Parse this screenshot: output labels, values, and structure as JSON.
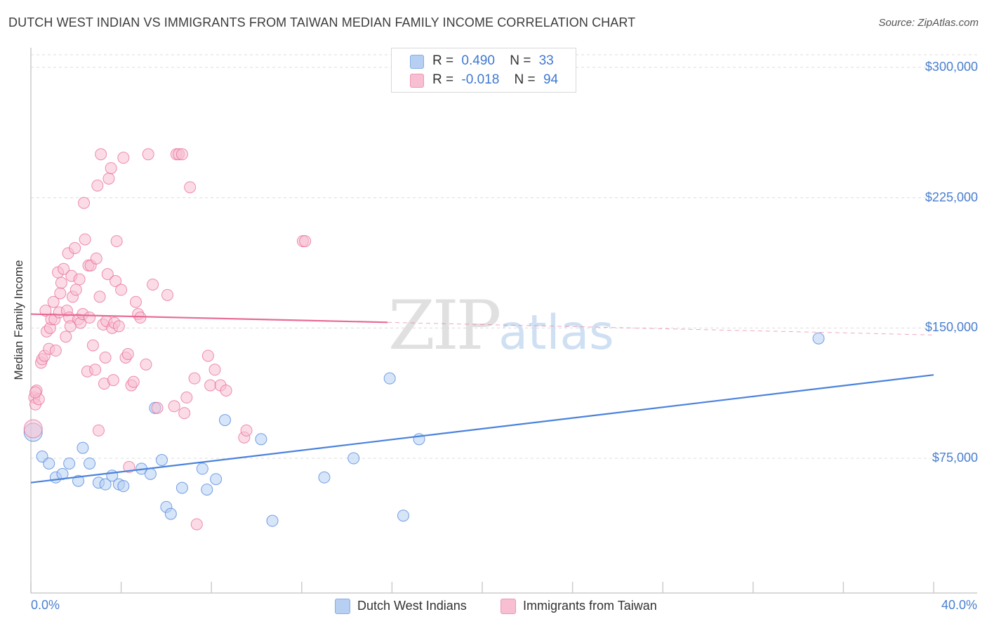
{
  "header": {
    "title": "DUTCH WEST INDIAN VS IMMIGRANTS FROM TAIWAN MEDIAN FAMILY INCOME CORRELATION CHART",
    "source": "Source: ZipAtlas.com"
  },
  "watermark": {
    "zip": "ZIP",
    "atlas": "atlas"
  },
  "legend": {
    "rows": [
      {
        "r_label": "R =",
        "r_value": "0.490",
        "n_label": "N =",
        "n_value": "33",
        "color": "#b7cff2"
      },
      {
        "r_label": "R =",
        "r_value": "-0.018",
        "n_label": "N =",
        "n_value": "94",
        "color": "#f7bfd1"
      }
    ]
  },
  "bottom_legend": [
    {
      "label": "Dutch West Indians",
      "color": "#b7cff2"
    },
    {
      "label": "Immigrants from Taiwan",
      "color": "#f7bfd1"
    }
  ],
  "chart_data": {
    "type": "scatter",
    "xlabel": "",
    "ylabel": "Median Family Income",
    "x_tick_labels": [
      "0.0%",
      "40.0%"
    ],
    "y_tick_labels": [
      "$75,000",
      "$150,000",
      "$225,000",
      "$300,000"
    ],
    "y_ticks": [
      75000,
      150000,
      225000,
      300000
    ],
    "xlim": [
      0,
      40
    ],
    "ylim": [
      0,
      307000
    ],
    "grid": true,
    "legend_position": "top-center",
    "series": [
      {
        "name": "Dutch West Indians",
        "color": "#4a82dc",
        "fill": "#b7cff2",
        "trend": {
          "x": [
            0,
            40
          ],
          "y": [
            61000,
            123000
          ],
          "solid_until": 40
        },
        "points": [
          [
            0.1,
            90000
          ],
          [
            0.5,
            76000
          ],
          [
            0.8,
            72000
          ],
          [
            1.1,
            64000
          ],
          [
            1.4,
            66000
          ],
          [
            1.7,
            72000
          ],
          [
            2.1,
            62000
          ],
          [
            2.3,
            81000
          ],
          [
            2.6,
            72000
          ],
          [
            3.0,
            61000
          ],
          [
            3.3,
            60000
          ],
          [
            3.6,
            65000
          ],
          [
            3.9,
            60000
          ],
          [
            4.1,
            59000
          ],
          [
            4.9,
            69000
          ],
          [
            5.3,
            66000
          ],
          [
            5.5,
            104000
          ],
          [
            5.8,
            74000
          ],
          [
            6.0,
            47000
          ],
          [
            6.2,
            43000
          ],
          [
            6.7,
            58000
          ],
          [
            7.6,
            69000
          ],
          [
            7.8,
            57000
          ],
          [
            8.2,
            63000
          ],
          [
            8.6,
            97000
          ],
          [
            10.2,
            86000
          ],
          [
            10.7,
            39000
          ],
          [
            13.0,
            64000
          ],
          [
            14.3,
            75000
          ],
          [
            15.9,
            121000
          ],
          [
            16.5,
            42000
          ],
          [
            17.2,
            86000
          ],
          [
            34.9,
            144000
          ]
        ]
      },
      {
        "name": "Immigrants from Taiwan",
        "color": "#e86a94",
        "fill": "#f7bfd1",
        "trend": {
          "x": [
            0,
            40
          ],
          "y": [
            158000,
            146000
          ],
          "solid_until": 15.8
        },
        "points": [
          [
            0.1,
            92000
          ],
          [
            0.15,
            110000
          ],
          [
            0.2,
            106000
          ],
          [
            0.25,
            114000
          ],
          [
            0.35,
            109000
          ],
          [
            0.45,
            130000
          ],
          [
            0.5,
            132000
          ],
          [
            0.6,
            134000
          ],
          [
            0.65,
            160000
          ],
          [
            0.7,
            148000
          ],
          [
            0.8,
            138000
          ],
          [
            0.85,
            150000
          ],
          [
            0.9,
            155000
          ],
          [
            1.0,
            165000
          ],
          [
            1.05,
            155000
          ],
          [
            1.1,
            137000
          ],
          [
            1.2,
            182000
          ],
          [
            1.25,
            159000
          ],
          [
            1.3,
            170000
          ],
          [
            1.35,
            176000
          ],
          [
            1.45,
            184000
          ],
          [
            1.55,
            145000
          ],
          [
            1.6,
            160000
          ],
          [
            1.65,
            193000
          ],
          [
            1.7,
            156000
          ],
          [
            1.75,
            151000
          ],
          [
            1.8,
            180000
          ],
          [
            1.85,
            168000
          ],
          [
            1.95,
            196000
          ],
          [
            2.0,
            172000
          ],
          [
            2.1,
            155000
          ],
          [
            2.15,
            178000
          ],
          [
            2.2,
            153000
          ],
          [
            2.3,
            158000
          ],
          [
            2.35,
            222000
          ],
          [
            2.4,
            201000
          ],
          [
            2.5,
            125000
          ],
          [
            2.55,
            186000
          ],
          [
            2.6,
            156000
          ],
          [
            2.65,
            186000
          ],
          [
            2.75,
            140000
          ],
          [
            2.85,
            126000
          ],
          [
            2.9,
            190000
          ],
          [
            2.95,
            232000
          ],
          [
            3.0,
            91000
          ],
          [
            3.05,
            168000
          ],
          [
            3.1,
            250000
          ],
          [
            3.2,
            152000
          ],
          [
            3.25,
            118000
          ],
          [
            3.3,
            133000
          ],
          [
            3.35,
            154000
          ],
          [
            3.4,
            181000
          ],
          [
            3.45,
            236000
          ],
          [
            3.55,
            242000
          ],
          [
            3.6,
            150000
          ],
          [
            3.65,
            120000
          ],
          [
            3.7,
            153000
          ],
          [
            3.75,
            177000
          ],
          [
            3.8,
            200000
          ],
          [
            3.9,
            151000
          ],
          [
            4.0,
            172000
          ],
          [
            4.1,
            248000
          ],
          [
            4.2,
            133000
          ],
          [
            4.3,
            135000
          ],
          [
            4.35,
            70000
          ],
          [
            4.45,
            117000
          ],
          [
            4.55,
            119000
          ],
          [
            4.65,
            165000
          ],
          [
            4.75,
            158000
          ],
          [
            4.85,
            156000
          ],
          [
            5.1,
            129000
          ],
          [
            5.2,
            250000
          ],
          [
            5.4,
            175000
          ],
          [
            5.6,
            104000
          ],
          [
            6.05,
            169000
          ],
          [
            6.35,
            105000
          ],
          [
            6.45,
            250000
          ],
          [
            6.55,
            250000
          ],
          [
            6.7,
            250000
          ],
          [
            6.8,
            101000
          ],
          [
            6.9,
            110000
          ],
          [
            7.05,
            231000
          ],
          [
            7.25,
            121000
          ],
          [
            7.35,
            37000
          ],
          [
            7.85,
            134000
          ],
          [
            7.95,
            117000
          ],
          [
            8.15,
            126000
          ],
          [
            8.4,
            117000
          ],
          [
            8.65,
            114000
          ],
          [
            9.45,
            87000
          ],
          [
            9.55,
            91000
          ],
          [
            12.05,
            200000
          ],
          [
            12.15,
            200000
          ],
          [
            0.2,
            113000
          ]
        ]
      }
    ]
  }
}
